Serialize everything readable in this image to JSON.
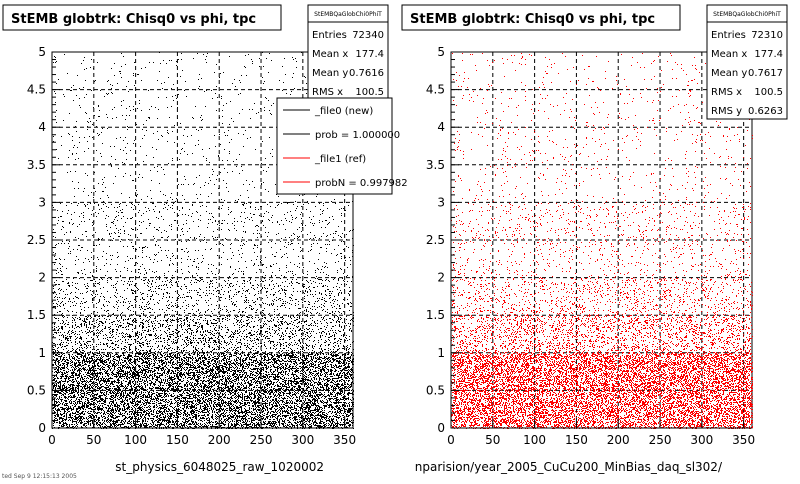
{
  "chart_data": [
    {
      "type": "scatter",
      "title": "StEMB globtrk: Chisq0 vs phi, tpc",
      "xlabel": "st_physics_6048025_raw_1020002",
      "ylabel": "",
      "xlim": [
        0,
        360
      ],
      "ylim": [
        0,
        5
      ],
      "x_ticks": [
        "0",
        "50",
        "100",
        "150",
        "200",
        "250",
        "300",
        "350"
      ],
      "y_ticks": [
        "0",
        "0.5",
        "1",
        "1.5",
        "2",
        "2.5",
        "3",
        "3.5",
        "4",
        "4.5",
        "5"
      ],
      "grid": true,
      "marker_color": "#000000",
      "stats": {
        "box_name": "StEMBQaGlobChi0PhiT",
        "rows": [
          {
            "label": "Entries",
            "value": "72340"
          },
          {
            "label": "Mean x",
            "value": "177.4"
          },
          {
            "label": "Mean y",
            "value": "0.7616"
          },
          {
            "label": "RMS x",
            "value": "100.5"
          }
        ]
      },
      "legend": {
        "placement": "top-right",
        "entries": [
          {
            "label": "_file0 (new)",
            "color": "#000000"
          },
          {
            "label": "prob = 1.000000",
            "color": "#000000"
          },
          {
            "label": "_file1 (ref)",
            "color": "#ff0000"
          },
          {
            "label": "probN = 0.997982",
            "color": "#ff0000"
          }
        ]
      },
      "series": [
        {
          "distribution": "density of entries vs Chisq0 (y) at x in [0,360]",
          "x_range": [
            0,
            360
          ],
          "y_density_bands": [
            {
              "y": [
                0,
                1.0
              ],
              "relative_density": 1.0
            },
            {
              "y": [
                1.0,
                1.5
              ],
              "relative_density": 0.35
            },
            {
              "y": [
                1.5,
                2.0
              ],
              "relative_density": 0.18
            },
            {
              "y": [
                2.0,
                3.0
              ],
              "relative_density": 0.08
            },
            {
              "y": [
                3.0,
                5.0
              ],
              "relative_density": 0.03
            }
          ]
        }
      ]
    },
    {
      "type": "scatter",
      "title": "StEMB globtrk: Chisq0 vs phi, tpc",
      "xlabel": "nparision/year_2005_CuCu200_MinBias_daq_sl302/",
      "ylabel": "",
      "xlim": [
        0,
        360
      ],
      "ylim": [
        0,
        5
      ],
      "x_ticks": [
        "0",
        "50",
        "100",
        "150",
        "200",
        "250",
        "300",
        "350"
      ],
      "y_ticks": [
        "0",
        "0.5",
        "1",
        "1.5",
        "2",
        "2.5",
        "3",
        "3.5",
        "4",
        "4.5",
        "5"
      ],
      "grid": true,
      "marker_color": "#ff0000",
      "stats": {
        "box_name": "StEMBQaGlobChi0PhiT",
        "rows": [
          {
            "label": "Entries",
            "value": "72310"
          },
          {
            "label": "Mean x",
            "value": "177.4"
          },
          {
            "label": "Mean y",
            "value": "0.7617"
          },
          {
            "label": "RMS x",
            "value": "100.5"
          },
          {
            "label": "RMS y",
            "value": "0.6263"
          }
        ]
      },
      "series": [
        {
          "distribution": "density of entries vs Chisq0 (y) at x in [0,360]",
          "x_range": [
            0,
            360
          ],
          "y_density_bands": [
            {
              "y": [
                0,
                1.0
              ],
              "relative_density": 1.0
            },
            {
              "y": [
                1.0,
                1.5
              ],
              "relative_density": 0.35
            },
            {
              "y": [
                1.5,
                2.0
              ],
              "relative_density": 0.18
            },
            {
              "y": [
                2.0,
                3.0
              ],
              "relative_density": 0.08
            },
            {
              "y": [
                3.0,
                5.0
              ],
              "relative_density": 0.03
            }
          ]
        }
      ]
    }
  ],
  "footer_text": "ted Sep 9 12:15:13 2005"
}
